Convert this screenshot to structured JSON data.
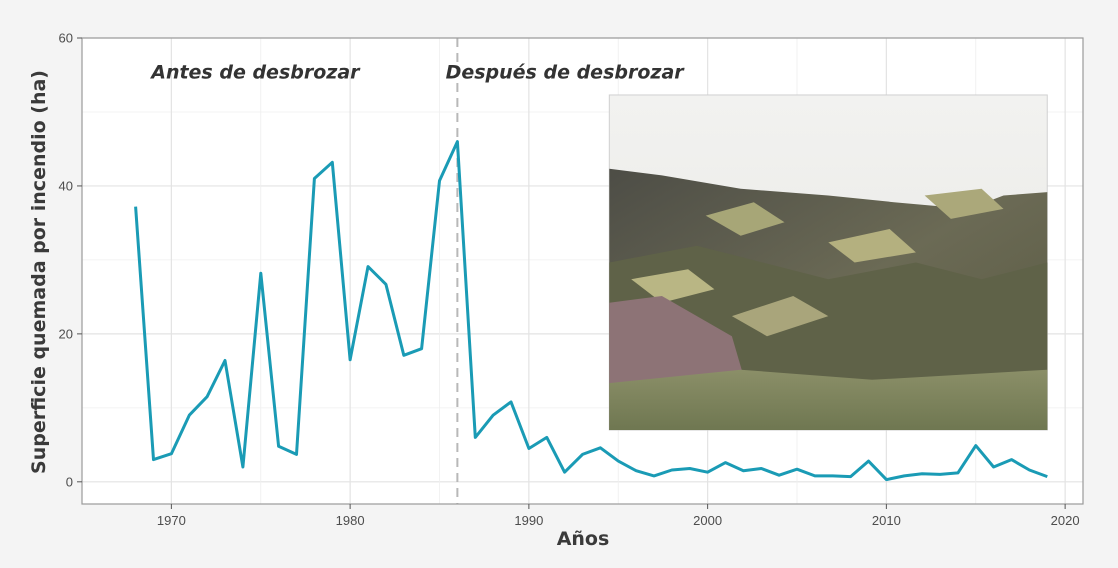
{
  "chart_data": {
    "type": "line",
    "title": "",
    "xlabel": "Años",
    "ylabel": "Superficie quemada por incendio (ha)",
    "xlim": [
      1965,
      2021
    ],
    "ylim": [
      -3,
      60
    ],
    "xticks": [
      1970,
      1980,
      1990,
      2000,
      2010,
      2020
    ],
    "yticks": [
      0,
      20,
      40,
      60
    ],
    "grid": true,
    "legend": "none",
    "line_color": "#1a9bb5",
    "grid_color": "#e3e3e3",
    "vline": {
      "x": 1986,
      "style": "dashed",
      "color": "#b8b8b8"
    },
    "annotations": [
      {
        "text": "Antes de desbrozar",
        "x": 1974.7,
        "y": 55.5
      },
      {
        "text": "Después de desbrozar",
        "x": 1992,
        "y": 55.5
      }
    ],
    "inset_photo": {
      "description_label": "",
      "x_range": [
        1994.5,
        2019
      ],
      "y_range": [
        7,
        52.3
      ]
    },
    "series": [
      {
        "x": [
          1968,
          1969,
          1970,
          1971,
          1972,
          1973,
          1974,
          1975,
          1976,
          1977,
          1978,
          1979,
          1980,
          1981,
          1982,
          1983,
          1984,
          1985,
          1986,
          1987,
          1988,
          1989,
          1990,
          1991,
          1992,
          1993,
          1994,
          1995,
          1996,
          1997,
          1998,
          1999,
          2000,
          2001,
          2002,
          2003,
          2004,
          2005,
          2006,
          2007,
          2008,
          2009,
          2010,
          2011,
          2012,
          2013,
          2014,
          2015,
          2016,
          2017,
          2018,
          2019
        ],
        "y": [
          37.2,
          3.0,
          3.8,
          9.0,
          11.5,
          16.4,
          2.0,
          28.2,
          4.8,
          3.7,
          41.0,
          43.2,
          16.5,
          29.1,
          26.7,
          17.1,
          18.0,
          40.7,
          46.0,
          6.0,
          9.0,
          10.8,
          4.5,
          6.0,
          1.3,
          3.7,
          4.6,
          2.8,
          1.5,
          0.8,
          1.6,
          1.8,
          1.3,
          2.6,
          1.5,
          1.8,
          0.9,
          1.7,
          0.8,
          0.8,
          0.7,
          2.8,
          0.3,
          0.8,
          1.1,
          1.0,
          1.2,
          4.9,
          2.0,
          3.0,
          1.6,
          0.7
        ]
      }
    ]
  }
}
